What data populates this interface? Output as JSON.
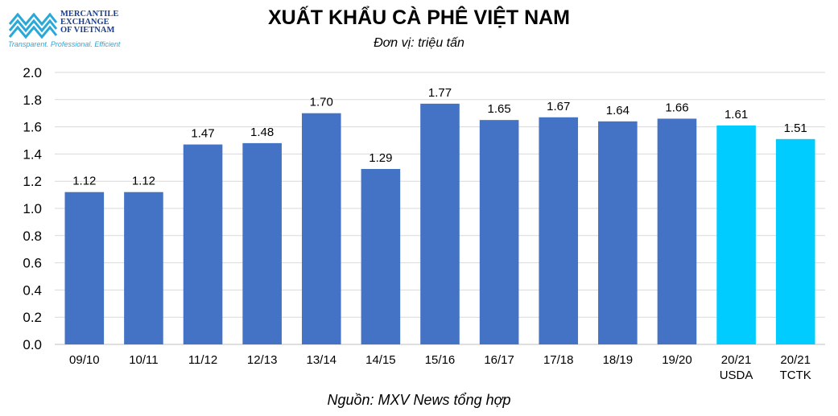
{
  "header": {
    "logo_lines": [
      "MERCANTILE",
      "EXCHANGE",
      "OF VIETNAM"
    ],
    "logo_tagline": "Transparent. Professional. Efficient",
    "brand_color": "#1b3f8f",
    "accent_color": "#2aa8d8"
  },
  "chart_data": {
    "type": "bar",
    "title": "XUẤT KHẨU CÀ PHÊ VIỆT NAM",
    "subtitle": "Đơn vị: triệu tấn",
    "source": "Nguồn: MXV News tổng hợp",
    "categories": [
      [
        "09/10"
      ],
      [
        "10/11"
      ],
      [
        "11/12"
      ],
      [
        "12/13"
      ],
      [
        "13/14"
      ],
      [
        "14/15"
      ],
      [
        "15/16"
      ],
      [
        "16/17"
      ],
      [
        "17/18"
      ],
      [
        "18/19"
      ],
      [
        "19/20"
      ],
      [
        "20/21",
        "USDA"
      ],
      [
        "20/21",
        "TCTK"
      ]
    ],
    "values": [
      1.12,
      1.12,
      1.47,
      1.48,
      1.7,
      1.29,
      1.77,
      1.65,
      1.67,
      1.64,
      1.66,
      1.61,
      1.51
    ],
    "value_labels": [
      "1.12",
      "1.12",
      "1.47",
      "1.48",
      "1.70",
      "1.29",
      "1.77",
      "1.65",
      "1.67",
      "1.64",
      "1.66",
      "1.61",
      "1.51"
    ],
    "bar_colors": [
      "#4472c4",
      "#4472c4",
      "#4472c4",
      "#4472c4",
      "#4472c4",
      "#4472c4",
      "#4472c4",
      "#4472c4",
      "#4472c4",
      "#4472c4",
      "#4472c4",
      "#00ccff",
      "#00ccff"
    ],
    "yticks": [
      "0.0",
      "0.2",
      "0.4",
      "0.6",
      "0.8",
      "1.0",
      "1.2",
      "1.4",
      "1.6",
      "1.8",
      "2.0"
    ],
    "ylim": [
      0,
      2.0
    ],
    "grid": true,
    "legend": "none"
  }
}
